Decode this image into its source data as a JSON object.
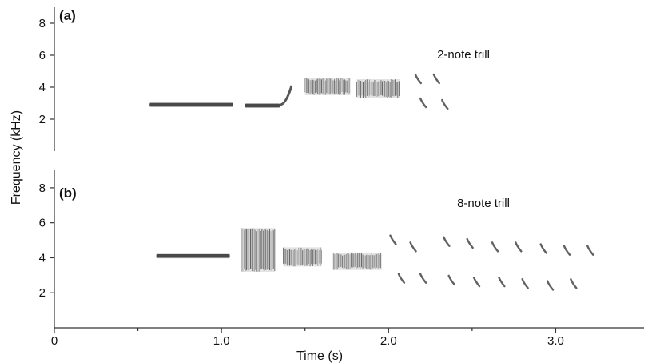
{
  "chart_data": {
    "type": "spectrogram",
    "ylabel": "Frequency (kHz)",
    "xlabel": "Time (s)",
    "xlim": [
      0,
      3.5
    ],
    "x_ticks": [
      0,
      1.0,
      2.0,
      3.0
    ],
    "x_tick_labels": [
      "0",
      "1.0",
      "2.0",
      "3.0"
    ],
    "x_minor_ticks": [
      0.5,
      1.5,
      2.5
    ],
    "panels": [
      {
        "label": "(a)",
        "annotation": "2-note trill",
        "ylim": [
          0,
          9
        ],
        "y_ticks": [
          2,
          4,
          6,
          8
        ],
        "y_tick_labels": [
          "2",
          "4",
          "6",
          "8"
        ],
        "segments": [
          {
            "kind": "tone",
            "t0": 0.57,
            "t1": 1.07,
            "f": 2.9
          },
          {
            "kind": "tone",
            "t0": 1.14,
            "t1": 1.35,
            "f": 2.85
          },
          {
            "kind": "upsweep",
            "t0": 1.35,
            "t1": 1.42,
            "f0": 2.9,
            "f1": 4.1
          },
          {
            "kind": "band",
            "t0": 1.5,
            "t1": 1.77,
            "f0": 3.5,
            "f1": 4.6
          },
          {
            "kind": "band",
            "t0": 1.81,
            "t1": 2.07,
            "f0": 3.3,
            "f1": 4.5
          },
          {
            "kind": "note",
            "t": 2.17,
            "f": 4.5
          },
          {
            "kind": "note",
            "t": 2.28,
            "f": 4.5
          },
          {
            "kind": "note",
            "t": 2.2,
            "f": 3.0
          },
          {
            "kind": "note",
            "t": 2.33,
            "f": 2.9
          }
        ]
      },
      {
        "label": "(b)",
        "annotation": "8-note trill",
        "ylim": [
          0,
          9
        ],
        "y_ticks": [
          2,
          4,
          6,
          8
        ],
        "y_tick_labels": [
          "2",
          "4",
          "6",
          "8"
        ],
        "segments": [
          {
            "kind": "tone",
            "t0": 0.61,
            "t1": 1.05,
            "f": 4.1
          },
          {
            "kind": "band",
            "t0": 1.12,
            "t1": 1.32,
            "f0": 3.2,
            "f1": 5.7
          },
          {
            "kind": "band",
            "t0": 1.37,
            "t1": 1.6,
            "f0": 3.5,
            "f1": 4.6
          },
          {
            "kind": "band",
            "t0": 1.67,
            "t1": 1.96,
            "f0": 3.3,
            "f1": 4.3
          },
          {
            "kind": "note",
            "t": 2.02,
            "f": 5.0
          },
          {
            "kind": "note",
            "t": 2.14,
            "f": 4.6
          },
          {
            "kind": "note",
            "t": 2.34,
            "f": 4.9
          },
          {
            "kind": "note",
            "t": 2.48,
            "f": 4.8
          },
          {
            "kind": "note",
            "t": 2.63,
            "f": 4.6
          },
          {
            "kind": "note",
            "t": 2.77,
            "f": 4.6
          },
          {
            "kind": "note",
            "t": 2.92,
            "f": 4.5
          },
          {
            "kind": "note",
            "t": 3.06,
            "f": 4.4
          },
          {
            "kind": "note",
            "t": 3.2,
            "f": 4.4
          },
          {
            "kind": "note",
            "t": 2.07,
            "f": 2.8
          },
          {
            "kind": "note",
            "t": 2.2,
            "f": 2.8
          },
          {
            "kind": "note",
            "t": 2.37,
            "f": 2.7
          },
          {
            "kind": "note",
            "t": 2.52,
            "f": 2.6
          },
          {
            "kind": "note",
            "t": 2.67,
            "f": 2.6
          },
          {
            "kind": "note",
            "t": 2.81,
            "f": 2.5
          },
          {
            "kind": "note",
            "t": 2.96,
            "f": 2.4
          },
          {
            "kind": "note",
            "t": 3.1,
            "f": 2.5
          }
        ]
      }
    ]
  }
}
